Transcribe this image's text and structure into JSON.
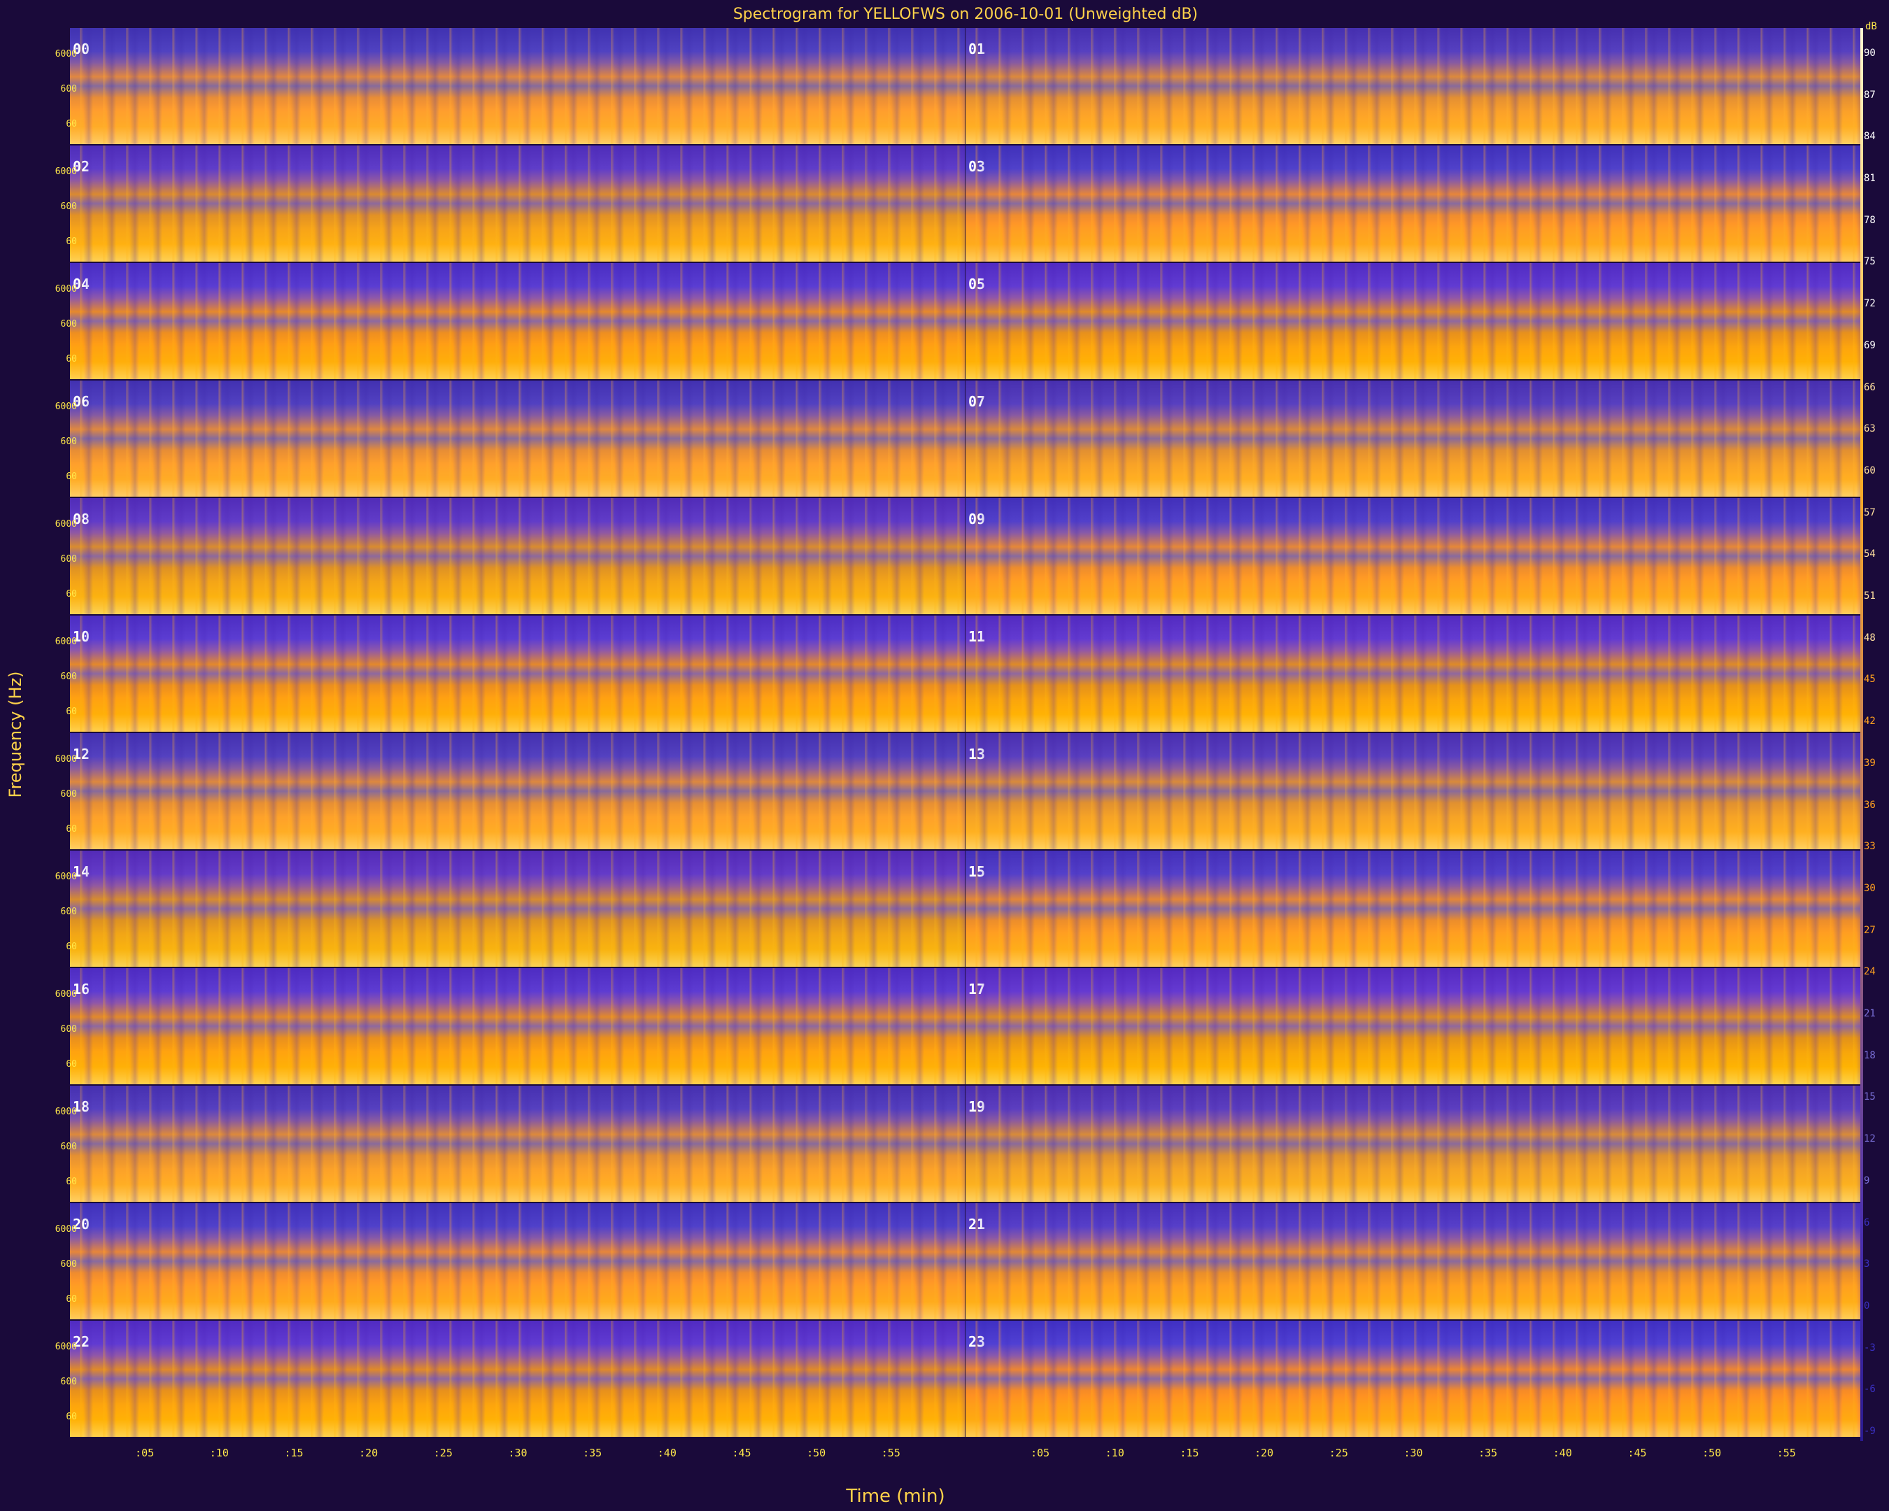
{
  "chart_data": {
    "type": "heatmap",
    "title": "Spectrogram for YELLOFWS on 2006-10-01 (Unweighted dB)",
    "xlabel": "Time (min)",
    "ylabel": "Frequency (Hz)",
    "colorbar_label": "dB",
    "rows": [
      {
        "hours": [
          "00",
          "01"
        ]
      },
      {
        "hours": [
          "02",
          "03"
        ]
      },
      {
        "hours": [
          "04",
          "05"
        ]
      },
      {
        "hours": [
          "06",
          "07"
        ]
      },
      {
        "hours": [
          "08",
          "09"
        ]
      },
      {
        "hours": [
          "10",
          "11"
        ]
      },
      {
        "hours": [
          "12",
          "13"
        ]
      },
      {
        "hours": [
          "14",
          "15"
        ]
      },
      {
        "hours": [
          "16",
          "17"
        ]
      },
      {
        "hours": [
          "18",
          "19"
        ]
      },
      {
        "hours": [
          "20",
          "21"
        ]
      },
      {
        "hours": [
          "22",
          "23"
        ]
      }
    ],
    "freq_ticks": [
      "6000",
      "600",
      "60"
    ],
    "x_ticks": [
      ":05",
      ":10",
      ":15",
      ":20",
      ":25",
      ":30",
      ":35",
      ":40",
      ":45",
      ":50",
      ":55"
    ],
    "db_ticks": [
      90,
      87,
      84,
      81,
      78,
      75,
      72,
      69,
      66,
      63,
      60,
      57,
      54,
      51,
      48,
      45,
      42,
      39,
      36,
      33,
      30,
      27,
      24,
      21,
      18,
      15,
      12,
      9,
      6,
      3,
      0,
      -3,
      -6,
      -9
    ],
    "colors": {
      "low": "#3a28b0",
      "mid": "#f6a326",
      "high": "#fff3c0",
      "background": "#1a0a3a",
      "text": "#ffd24a"
    }
  }
}
